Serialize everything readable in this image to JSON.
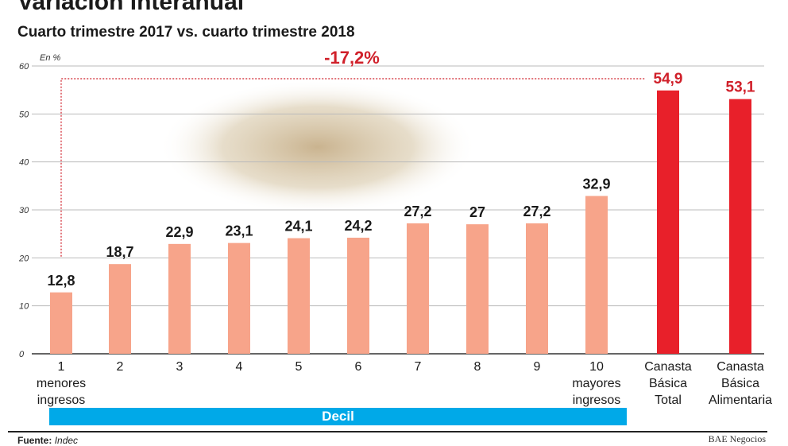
{
  "title": "Variación interanual",
  "subtitle": "Cuarto trimestre 2017 vs. cuarto trimestre 2018",
  "source_label": "Fuente:",
  "source_value": "Indec",
  "credit": "BAE Negocios",
  "chart_data": {
    "type": "bar",
    "unit_label": "En %",
    "ylim": [
      0,
      60
    ],
    "yticks": [
      0,
      10,
      20,
      30,
      40,
      50,
      60
    ],
    "grid": true,
    "categories": [
      [
        "1",
        "menores",
        "ingresos"
      ],
      [
        "2"
      ],
      [
        "3"
      ],
      [
        "4"
      ],
      [
        "5"
      ],
      [
        "6"
      ],
      [
        "7"
      ],
      [
        "8"
      ],
      [
        "9"
      ],
      [
        "10",
        "mayores",
        "ingresos"
      ],
      [
        "Canasta",
        "Básica",
        "Total"
      ],
      [
        "Canasta",
        "Básica",
        "Alimentaria"
      ]
    ],
    "values": [
      12.8,
      18.7,
      22.9,
      23.1,
      24.1,
      24.2,
      27.2,
      27,
      27.2,
      32.9,
      54.9,
      53.1
    ],
    "value_labels": [
      "12,8",
      "18,7",
      "22,9",
      "23,1",
      "24,1",
      "24,2",
      "27,2",
      "27",
      "27,2",
      "32,9",
      "54,9",
      "53,1"
    ],
    "group_label": "Decil",
    "annotation": "-17,2%",
    "colors": {
      "decil": "#f7a48a",
      "canasta": "#e8202a",
      "label_canasta": "#d0202a",
      "group_bar": "#00a9e8"
    }
  }
}
